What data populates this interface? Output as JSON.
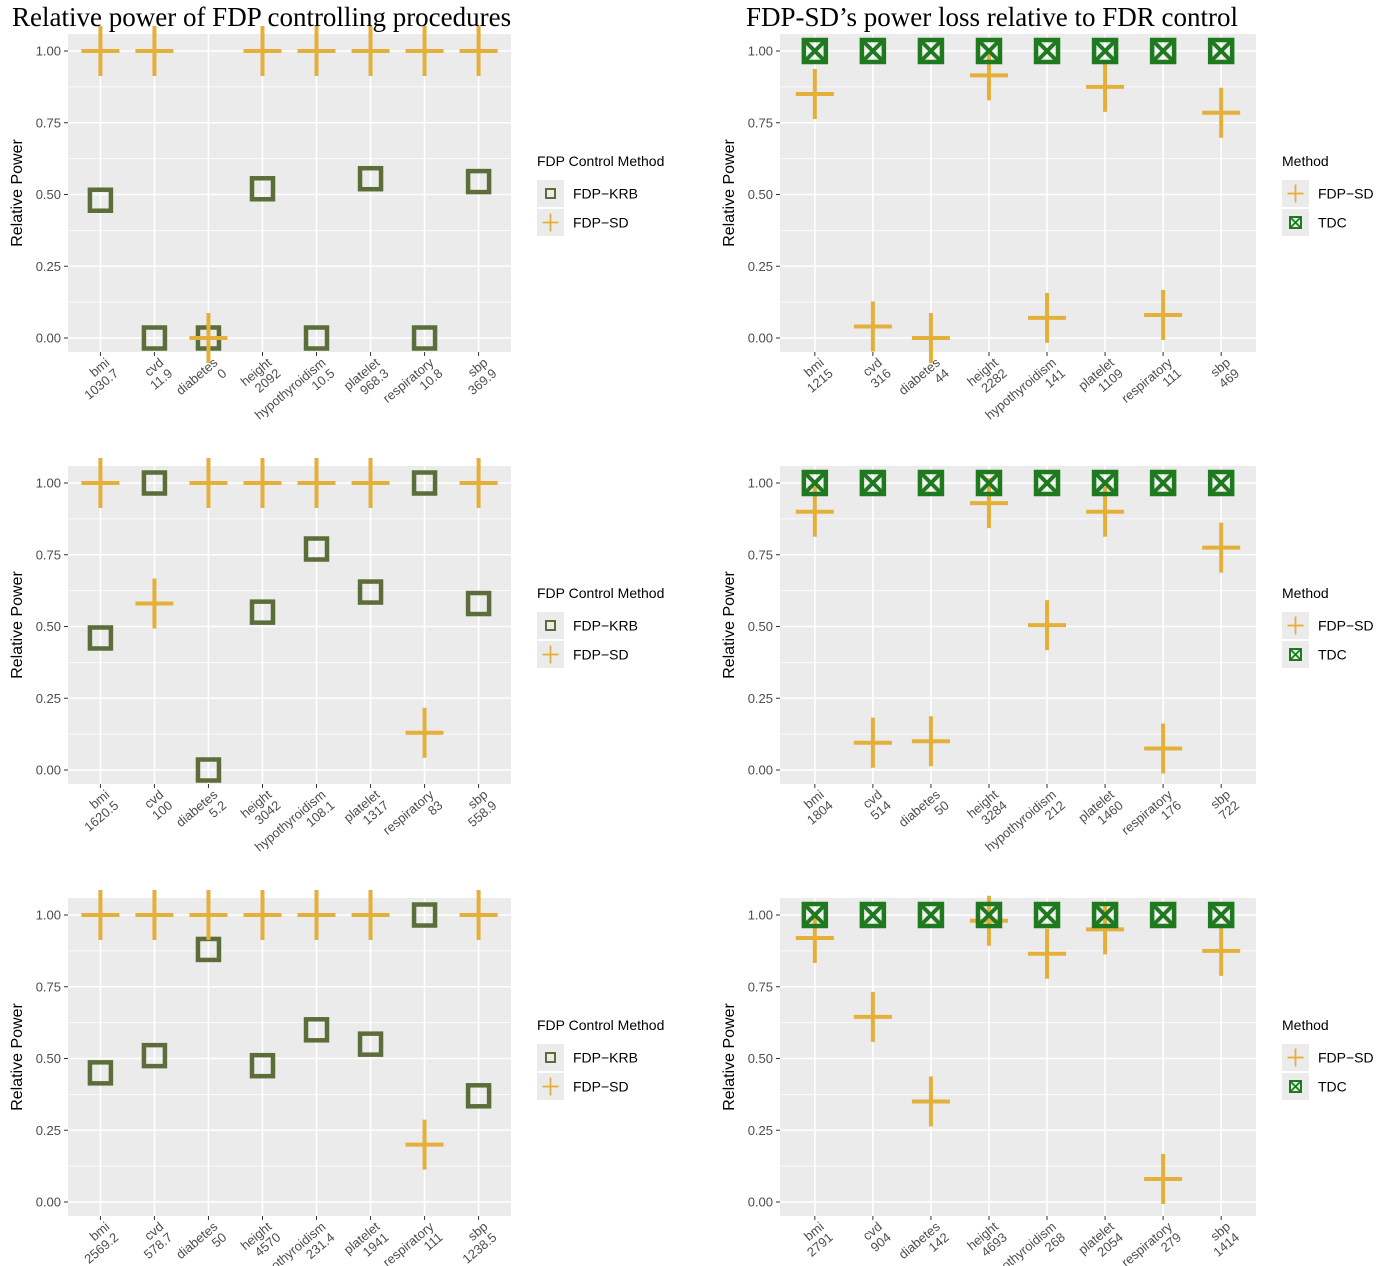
{
  "titles": {
    "left": "Relative power of FDP controlling procedures",
    "right": "FDP-SD’s power loss relative to FDR control"
  },
  "colors": {
    "panel_bg": "#ebebeb",
    "grid": "#ffffff",
    "krb": "#5b6e3a",
    "sd": "#e4b03a",
    "tdc": "#1f7a1f"
  },
  "chart_data": [
    {
      "type": "scatter",
      "ylabel": "Relative Power",
      "ylim": [
        0,
        1
      ],
      "yticks": [
        "0.00",
        "0.25",
        "0.50",
        "0.75",
        "1.00"
      ],
      "categories": [
        [
          "bmi",
          "1030.7"
        ],
        [
          "cvd",
          "11.9"
        ],
        [
          "diabetes",
          "0"
        ],
        [
          "height",
          "2092"
        ],
        [
          "hypothyroidism",
          "10.5"
        ],
        [
          "platelet",
          "968.3"
        ],
        [
          "respiratory",
          "10.8"
        ],
        [
          "sbp",
          "369.9"
        ]
      ],
      "legend": {
        "title": "FDP Control Method",
        "placement": "right"
      },
      "series": [
        {
          "name": "FDP−KRB",
          "marker": "square",
          "values": [
            0.48,
            0.0,
            0.0,
            0.52,
            0.0,
            0.555,
            0.0,
            0.545
          ]
        },
        {
          "name": "FDP−SD",
          "marker": "plus",
          "values": [
            1.0,
            1.0,
            0.0,
            1.0,
            1.0,
            1.0,
            1.0,
            1.0
          ]
        }
      ]
    },
    {
      "type": "scatter",
      "ylabel": "Relative Power",
      "ylim": [
        0,
        1
      ],
      "yticks": [
        "0.00",
        "0.25",
        "0.50",
        "0.75",
        "1.00"
      ],
      "categories": [
        [
          "bmi",
          "1215"
        ],
        [
          "cvd",
          "316"
        ],
        [
          "diabetes",
          "44"
        ],
        [
          "height",
          "2282"
        ],
        [
          "hypothyroidism",
          "141"
        ],
        [
          "platelet",
          "1109"
        ],
        [
          "respiratory",
          "111"
        ],
        [
          "sbp",
          "469"
        ]
      ],
      "legend": {
        "title": "Method",
        "placement": "right"
      },
      "series": [
        {
          "name": "FDP−SD",
          "marker": "plus",
          "values": [
            0.85,
            0.04,
            0.0,
            0.915,
            0.07,
            0.875,
            0.08,
            0.785
          ]
        },
        {
          "name": "TDC",
          "marker": "boxx",
          "values": [
            1,
            1,
            1,
            1,
            1,
            1,
            1,
            1
          ]
        }
      ]
    },
    {
      "type": "scatter",
      "ylabel": "Relative Power",
      "ylim": [
        0,
        1
      ],
      "yticks": [
        "0.00",
        "0.25",
        "0.50",
        "0.75",
        "1.00"
      ],
      "categories": [
        [
          "bmi",
          "1620.5"
        ],
        [
          "cvd",
          "100"
        ],
        [
          "diabetes",
          "5.2"
        ],
        [
          "height",
          "3042"
        ],
        [
          "hypothyroidism",
          "108.1"
        ],
        [
          "platelet",
          "1317"
        ],
        [
          "respiratory",
          "83"
        ],
        [
          "sbp",
          "558.9"
        ]
      ],
      "legend": {
        "title": "FDP Control Method",
        "placement": "right"
      },
      "series": [
        {
          "name": "FDP−KRB",
          "marker": "square",
          "values": [
            0.46,
            1.0,
            0.0,
            0.55,
            0.77,
            0.62,
            1.0,
            0.58
          ]
        },
        {
          "name": "FDP−SD",
          "marker": "plus",
          "values": [
            1.0,
            0.58,
            1.0,
            1.0,
            1.0,
            1.0,
            0.13,
            1.0
          ]
        }
      ]
    },
    {
      "type": "scatter",
      "ylabel": "Relative Power",
      "ylim": [
        0,
        1
      ],
      "yticks": [
        "0.00",
        "0.25",
        "0.50",
        "0.75",
        "1.00"
      ],
      "categories": [
        [
          "bmi",
          "1804"
        ],
        [
          "cvd",
          "514"
        ],
        [
          "diabetes",
          "50"
        ],
        [
          "height",
          "3284"
        ],
        [
          "hypothyroidism",
          "212"
        ],
        [
          "platelet",
          "1460"
        ],
        [
          "respiratory",
          "176"
        ],
        [
          "sbp",
          "722"
        ]
      ],
      "legend": {
        "title": "Method",
        "placement": "right"
      },
      "series": [
        {
          "name": "FDP−SD",
          "marker": "plus",
          "values": [
            0.9,
            0.095,
            0.1,
            0.93,
            0.505,
            0.9,
            0.075,
            0.775
          ]
        },
        {
          "name": "TDC",
          "marker": "boxx",
          "values": [
            1,
            1,
            1,
            1,
            1,
            1,
            1,
            1
          ]
        }
      ]
    },
    {
      "type": "scatter",
      "ylabel": "Relative Power",
      "ylim": [
        0,
        1
      ],
      "yticks": [
        "0.00",
        "0.25",
        "0.50",
        "0.75",
        "1.00"
      ],
      "categories": [
        [
          "bmi",
          "2569.2"
        ],
        [
          "cvd",
          "578.7"
        ],
        [
          "diabetes",
          "50"
        ],
        [
          "height",
          "4570"
        ],
        [
          "hypothyroidism",
          "231.4"
        ],
        [
          "platelet",
          "1941"
        ],
        [
          "respiratory",
          "111"
        ],
        [
          "sbp",
          "1238.5"
        ]
      ],
      "legend": {
        "title": "FDP Control Method",
        "placement": "right"
      },
      "series": [
        {
          "name": "FDP−KRB",
          "marker": "square",
          "values": [
            0.45,
            0.51,
            0.88,
            0.475,
            0.6,
            0.55,
            1.0,
            0.37
          ]
        },
        {
          "name": "FDP−SD",
          "marker": "plus",
          "values": [
            1.0,
            1.0,
            1.0,
            1.0,
            1.0,
            1.0,
            0.2,
            1.0
          ]
        }
      ]
    },
    {
      "type": "scatter",
      "ylabel": "Relative Power",
      "ylim": [
        0,
        1
      ],
      "yticks": [
        "0.00",
        "0.25",
        "0.50",
        "0.75",
        "1.00"
      ],
      "categories": [
        [
          "bmi",
          "2791"
        ],
        [
          "cvd",
          "904"
        ],
        [
          "diabetes",
          "142"
        ],
        [
          "height",
          "4693"
        ],
        [
          "hypothyroidism",
          "268"
        ],
        [
          "platelet",
          "2054"
        ],
        [
          "respiratory",
          "279"
        ],
        [
          "sbp",
          "1414"
        ]
      ],
      "legend": {
        "title": "Method",
        "placement": "right"
      },
      "series": [
        {
          "name": "FDP−SD",
          "marker": "plus",
          "values": [
            0.92,
            0.645,
            0.35,
            0.98,
            0.865,
            0.95,
            0.08,
            0.875
          ]
        },
        {
          "name": "TDC",
          "marker": "boxx",
          "values": [
            1,
            1,
            1,
            1,
            1,
            1,
            1,
            1
          ]
        }
      ]
    }
  ]
}
